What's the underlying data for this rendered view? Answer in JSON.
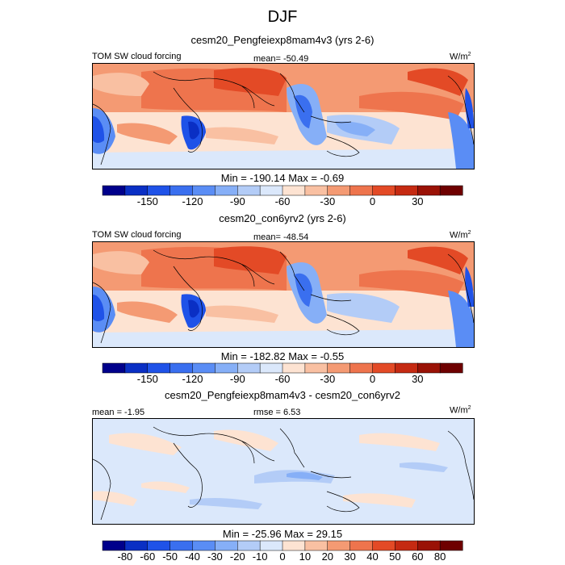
{
  "chart_data": {
    "type": "heatmap",
    "title": "DJF",
    "panels": [
      {
        "subtitle": "cesm20_Pengfeiexp8mam4v3 (yrs 2-6)",
        "left_label": "TOM SW cloud forcing",
        "center_label": "mean= -50.49",
        "right_label": "W/m",
        "right_label_sup": "2",
        "stats": "Min = -190.14 Max =  -0.69",
        "colorbar": {
          "levels": [
            -165,
            -150,
            -135,
            -120,
            -105,
            -90,
            -75,
            -60,
            -45,
            -30,
            -15,
            0,
            15,
            30,
            45
          ],
          "tick_values": [
            -150,
            -120,
            -90,
            -60,
            -30,
            0,
            30
          ],
          "tick_labels": [
            "-150",
            "-120",
            "-90",
            "-60",
            "-30",
            "0",
            "30"
          ],
          "colors": [
            "#00008b",
            "#0a2fc4",
            "#1f52e8",
            "#3a6fef",
            "#5a8df5",
            "#86aff7",
            "#b3ccf7",
            "#dbe8fb",
            "#fde3d2",
            "#f9c0a2",
            "#f49a73",
            "#ee744d",
            "#e34a26",
            "#c52a12",
            "#9a1206",
            "#6e0000"
          ]
        }
      },
      {
        "subtitle": "cesm20_con6yrv2 (yrs 2-6)",
        "left_label": "TOM SW cloud forcing",
        "center_label": "mean= -48.54",
        "right_label": "W/m",
        "right_label_sup": "2",
        "stats": "Min = -182.82 Max =  -0.55",
        "colorbar": {
          "levels": [
            -165,
            -150,
            -135,
            -120,
            -105,
            -90,
            -75,
            -60,
            -45,
            -30,
            -15,
            0,
            15,
            30,
            45
          ],
          "tick_values": [
            -150,
            -120,
            -90,
            -60,
            -30,
            0,
            30
          ],
          "tick_labels": [
            "-150",
            "-120",
            "-90",
            "-60",
            "-30",
            "0",
            "30"
          ],
          "colors": [
            "#00008b",
            "#0a2fc4",
            "#1f52e8",
            "#3a6fef",
            "#5a8df5",
            "#86aff7",
            "#b3ccf7",
            "#dbe8fb",
            "#fde3d2",
            "#f9c0a2",
            "#f49a73",
            "#ee744d",
            "#e34a26",
            "#c52a12",
            "#9a1206",
            "#6e0000"
          ]
        }
      },
      {
        "subtitle": "cesm20_Pengfeiexp8mam4v3 - cesm20_con6yrv2",
        "left_label": "mean =  -1.95",
        "center_label": "rmse =   6.53",
        "right_label": "W/m",
        "right_label_sup": "2",
        "stats": "Min = -25.96 Max =  29.15",
        "colorbar": {
          "levels": [
            -80,
            -60,
            -50,
            -40,
            -30,
            -20,
            -10,
            0,
            10,
            20,
            30,
            40,
            50,
            60,
            80
          ],
          "tick_values": [
            -80,
            -60,
            -50,
            -40,
            -30,
            -20,
            -10,
            0,
            10,
            20,
            30,
            40,
            50,
            60,
            80
          ],
          "tick_labels": [
            "-80",
            "-60",
            "-50",
            "-40",
            "-30",
            "-20",
            "-10",
            "0",
            "10",
            "20",
            "30",
            "40",
            "50",
            "60",
            "80"
          ],
          "colors": [
            "#00008b",
            "#0a2fc4",
            "#1f52e8",
            "#3a6fef",
            "#5a8df5",
            "#86aff7",
            "#b3ccf7",
            "#dbe8fb",
            "#fde3d2",
            "#f9c0a2",
            "#f49a73",
            "#ee744d",
            "#e34a26",
            "#c52a12",
            "#9a1206",
            "#6e0000"
          ]
        }
      }
    ]
  }
}
